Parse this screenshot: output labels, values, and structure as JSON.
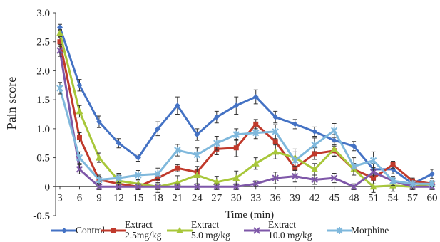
{
  "chart_data": {
    "type": "line",
    "xlabel": "Time (min)",
    "ylabel": "Pain score",
    "ylim": [
      -0.5,
      3.0
    ],
    "yticks": [
      "3.0",
      "2.5",
      "2.0",
      "1.5",
      "1.0",
      "0.5",
      "0",
      "-0.5"
    ],
    "yticks_values": [
      3.0,
      2.5,
      2.0,
      1.5,
      1.0,
      0.5,
      0,
      -0.5
    ],
    "x": [
      3,
      6,
      9,
      12,
      15,
      18,
      21,
      24,
      27,
      30,
      33,
      36,
      39,
      42,
      45,
      48,
      51,
      54,
      57,
      60
    ],
    "xtick_labels": [
      "3",
      "6",
      "9",
      "12",
      "15",
      "18",
      "21",
      "24",
      "27",
      "30",
      "33",
      "36",
      "39",
      "42",
      "45",
      "48",
      "51",
      "54",
      "57",
      "60"
    ],
    "grid": false,
    "legend_position": "bottom",
    "series": [
      {
        "name": "Control",
        "label_lines": [
          "Control"
        ],
        "color": "#4472C4",
        "marker": "diamond",
        "values": [
          2.75,
          1.75,
          1.12,
          0.75,
          0.5,
          1.0,
          1.4,
          0.9,
          1.2,
          1.4,
          1.55,
          1.2,
          1.08,
          0.95,
          0.8,
          0.7,
          0.3,
          0.3,
          0.05,
          0.22
        ],
        "errors": [
          0.05,
          0.1,
          0.1,
          0.08,
          0.06,
          0.12,
          0.15,
          0.1,
          0.1,
          0.15,
          0.12,
          0.1,
          0.08,
          0.08,
          0.1,
          0.08,
          0.1,
          0.08,
          0.05,
          0.08
        ]
      },
      {
        "name": "Extract 2.5mg/kg",
        "label_lines": [
          "Extract",
          "2.5mg/kg"
        ],
        "color": "#C0392B",
        "marker": "square",
        "values": [
          2.5,
          0.85,
          0.12,
          0.05,
          0.0,
          0.15,
          0.32,
          0.25,
          0.65,
          0.67,
          1.08,
          0.78,
          0.32,
          0.57,
          0.62,
          0.3,
          0.15,
          0.38,
          0.1,
          0.05
        ],
        "errors": [
          0.08,
          0.08,
          0.08,
          0.08,
          0.05,
          0.08,
          0.06,
          0.05,
          0.1,
          0.15,
          0.08,
          0.2,
          0.1,
          0.1,
          0.1,
          0.1,
          0.1,
          0.06,
          0.05,
          0.05
        ]
      },
      {
        "name": "Extract 5.0 mg/kg",
        "label_lines": [
          "Extract",
          "5.0 mg/kg"
        ],
        "color": "#A8C73A",
        "marker": "triangle",
        "values": [
          2.65,
          1.3,
          0.5,
          0.1,
          0.05,
          0.0,
          0.07,
          0.2,
          0.08,
          0.15,
          0.4,
          0.6,
          0.5,
          0.3,
          0.65,
          0.3,
          0.0,
          0.02,
          0.0,
          0.05
        ],
        "errors": [
          0.06,
          0.1,
          0.08,
          0.1,
          0.05,
          0.1,
          0.12,
          0.15,
          0.1,
          0.12,
          0.1,
          0.12,
          0.15,
          0.1,
          0.12,
          0.1,
          0.1,
          0.1,
          0.05,
          0.05
        ]
      },
      {
        "name": "Extract 10.0 mg/kg",
        "label_lines": [
          "Extract",
          "10.0 mg/kg"
        ],
        "color": "#7E57A8",
        "marker": "x",
        "values": [
          2.35,
          0.3,
          0.0,
          0.0,
          0.0,
          0.0,
          0.0,
          0.0,
          0.0,
          0.0,
          0.05,
          0.15,
          0.18,
          0.12,
          0.15,
          0.0,
          0.25,
          0.1,
          0.0,
          0.0
        ],
        "errors": [
          0.1,
          0.08,
          0.05,
          0.05,
          0.05,
          0.05,
          0.05,
          0.05,
          0.05,
          0.05,
          0.05,
          0.1,
          0.1,
          0.08,
          0.08,
          0.05,
          0.08,
          0.05,
          0.05,
          0.05
        ]
      },
      {
        "name": "Morphine",
        "label_lines": [
          "Morphine"
        ],
        "color": "#7FB8DC",
        "marker": "star",
        "values": [
          1.7,
          0.5,
          0.12,
          0.15,
          0.2,
          0.22,
          0.63,
          0.55,
          0.75,
          0.9,
          0.93,
          0.95,
          0.45,
          0.72,
          0.97,
          0.35,
          0.45,
          0.1,
          0.05,
          0.05
        ],
        "errors": [
          0.1,
          0.1,
          0.06,
          0.08,
          0.08,
          0.1,
          0.1,
          0.12,
          0.12,
          0.1,
          0.1,
          0.12,
          0.15,
          0.12,
          0.12,
          0.15,
          0.15,
          0.08,
          0.05,
          0.05
        ]
      }
    ]
  }
}
